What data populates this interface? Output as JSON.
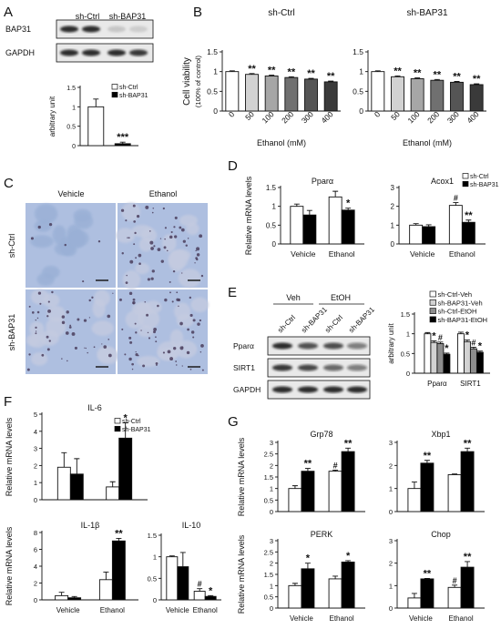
{
  "panel_labels": [
    "A",
    "B",
    "C",
    "D",
    "E",
    "F",
    "G"
  ],
  "colors": {
    "open": "#ffffff",
    "solid": "#000000",
    "grey1": "#d2d2d2",
    "grey2": "#bdbdbd",
    "grey3": "#a6a6a6",
    "grey4": "#8d8d8d",
    "grey5": "#707070",
    "grey6": "#555555",
    "grey7": "#3a3a3a",
    "micro_blue": "#aebfe0",
    "micro_stain": "#4a3d5c"
  },
  "blots_A": {
    "lanes": [
      "sh-Ctrl",
      "sh-BAP31"
    ],
    "proteins": [
      "BAP31",
      "GAPDH"
    ]
  },
  "blots_E": {
    "groups": [
      "Veh",
      "EtOH"
    ],
    "lanes": [
      "sh-Ctrl",
      "sh-BAP31",
      "sh-Ctrl",
      "sh-BAP31"
    ],
    "proteins": [
      "Pparα",
      "SIRT1",
      "GAPDH"
    ]
  },
  "micrographs_C": {
    "columns": [
      "Vehicle",
      "Ethanol"
    ],
    "rows": [
      "sh-Ctrl",
      "sh-BAP31"
    ]
  },
  "chart_data": [
    {
      "id": "A",
      "type": "bar",
      "categories": [
        "sh-Ctrl",
        "sh-BAP31"
      ],
      "values": [
        1.0,
        0.05
      ],
      "errors": [
        0.2,
        0.04
      ],
      "fills": [
        "open",
        "solid"
      ],
      "ylabel": "arbitrary unit",
      "ylim": [
        0,
        1.5
      ],
      "yticks": [
        0,
        0.5,
        1,
        1.5
      ],
      "xticks": [],
      "legend": [
        "sh-Ctrl",
        "sh-BAP31"
      ],
      "marks": [
        "",
        "***"
      ]
    },
    {
      "id": "B1",
      "type": "bar",
      "title": "sh-Ctrl",
      "categories": [
        "0",
        "50",
        "100",
        "200",
        "300",
        "400"
      ],
      "values": [
        1.0,
        0.93,
        0.89,
        0.85,
        0.81,
        0.74
      ],
      "errors": [
        0.02,
        0.02,
        0.02,
        0.02,
        0.02,
        0.02
      ],
      "fills": [
        "open",
        "grey1",
        "grey3",
        "grey5",
        "grey6",
        "grey7"
      ],
      "ylabel": "Cell viability",
      "ylabel2": "(100% of control)",
      "xlabel": "Ethanol (mM)",
      "ylim": [
        0,
        1.5
      ],
      "yticks": [
        0,
        0.5,
        1,
        1.5
      ],
      "marks": [
        "",
        "**",
        "**",
        "**",
        "**",
        "**"
      ]
    },
    {
      "id": "B2",
      "type": "bar",
      "title": "sh-BAP31",
      "categories": [
        "0",
        "50",
        "100",
        "200",
        "300",
        "400"
      ],
      "values": [
        1.0,
        0.87,
        0.82,
        0.78,
        0.73,
        0.67
      ],
      "errors": [
        0.02,
        0.02,
        0.02,
        0.02,
        0.02,
        0.02
      ],
      "fills": [
        "open",
        "grey1",
        "grey3",
        "grey5",
        "grey6",
        "grey7"
      ],
      "ylabel": "",
      "xlabel": "Ethanol (mM)",
      "ylim": [
        0,
        1.5
      ],
      "yticks": [
        0,
        0.5,
        1,
        1.5
      ],
      "marks": [
        "",
        "**",
        "**",
        "**",
        "**",
        "**"
      ]
    },
    {
      "id": "D1",
      "type": "bar",
      "title": "Pparα",
      "categories": [
        "Vehicle",
        "Ethanol"
      ],
      "series": [
        {
          "name": "sh-Ctrl",
          "values": [
            1.0,
            1.25
          ],
          "errors": [
            0.06,
            0.15
          ]
        },
        {
          "name": "sh-BAP31",
          "values": [
            0.77,
            0.9
          ],
          "errors": [
            0.12,
            0.05
          ]
        }
      ],
      "ylabel": "Relative mRNA levels",
      "ylim": [
        0,
        1.5
      ],
      "yticks": [
        0,
        0.5,
        1,
        1.5
      ],
      "marks": [
        [
          "",
          ""
        ],
        [
          "",
          "*"
        ]
      ]
    },
    {
      "id": "D2",
      "type": "bar",
      "title": "Acox1",
      "categories": [
        "Vehicle",
        "Ethanol"
      ],
      "series": [
        {
          "name": "sh-Ctrl",
          "values": [
            1.0,
            2.05
          ],
          "errors": [
            0.08,
            0.15
          ]
        },
        {
          "name": "sh-BAP31",
          "values": [
            0.92,
            1.15
          ],
          "errors": [
            0.1,
            0.12
          ]
        }
      ],
      "ylabel": "",
      "ylim": [
        0,
        3
      ],
      "yticks": [
        0,
        1,
        2,
        3
      ],
      "legend": [
        "sh-Ctrl",
        "sh-BAP31"
      ],
      "marks": [
        [
          "",
          ""
        ],
        [
          "#",
          "**"
        ]
      ]
    },
    {
      "id": "E",
      "type": "bar",
      "categories": [
        "Pparα",
        "SIRT1"
      ],
      "series": [
        {
          "name": "sh-Ctrl-Veh",
          "values": [
            1.0,
            1.0
          ],
          "errors": [
            0.03,
            0.04
          ]
        },
        {
          "name": "sh-BAP31-Veh",
          "values": [
            0.78,
            0.8
          ],
          "errors": [
            0.04,
            0.04
          ]
        },
        {
          "name": "sh-Ctrl-EtOH",
          "values": [
            0.75,
            0.62
          ],
          "errors": [
            0.04,
            0.04
          ]
        },
        {
          "name": "sh-BAP31-EtOH",
          "values": [
            0.48,
            0.53
          ],
          "errors": [
            0.03,
            0.03
          ]
        }
      ],
      "fills": [
        "open",
        "grey1",
        "grey4",
        "solid"
      ],
      "ylabel": "arbitrary unit",
      "ylim": [
        0,
        1.5
      ],
      "yticks": [
        0,
        0.5,
        1,
        1.5
      ],
      "legend": [
        "sh-Ctrl-Veh",
        "sh-BAP31-Veh",
        "sh-Ctrl-EtOH",
        "sh-BAP31-EtOH"
      ],
      "marks": [
        [
          "",
          "*",
          "#",
          "*"
        ],
        [
          "",
          "*",
          "#",
          "*"
        ]
      ]
    },
    {
      "id": "F1",
      "type": "bar",
      "title": "IL-6",
      "categories": [
        "Vehicle",
        "Ethanol"
      ],
      "series": [
        {
          "name": "sh-Ctrl",
          "values": [
            1.9,
            0.75
          ],
          "errors": [
            0.85,
            0.3
          ]
        },
        {
          "name": "sh-BAP31",
          "values": [
            1.5,
            3.6
          ],
          "errors": [
            0.9,
            0.9
          ]
        }
      ],
      "ylabel": "Relative mRNA levels",
      "ylim": [
        0,
        5
      ],
      "yticks": [
        0,
        1,
        2,
        3,
        4,
        5
      ],
      "legend": [
        "sh-Ctrl",
        "sh-BAP31"
      ],
      "marks": [
        [
          "",
          ""
        ],
        [
          "",
          "*"
        ]
      ]
    },
    {
      "id": "F2",
      "type": "bar",
      "title": "IL-1β",
      "categories": [
        "Vehicle",
        "Ethanol"
      ],
      "series": [
        {
          "name": "sh-Ctrl",
          "values": [
            0.5,
            2.4
          ],
          "errors": [
            0.4,
            0.9
          ]
        },
        {
          "name": "sh-BAP31",
          "values": [
            0.25,
            7.0
          ],
          "errors": [
            0.15,
            0.3
          ]
        }
      ],
      "ylabel": "Relative mRNA levels",
      "ylim": [
        0,
        8
      ],
      "yticks": [
        0,
        2,
        4,
        6,
        8
      ],
      "marks": [
        [
          "",
          ""
        ],
        [
          "",
          "**"
        ]
      ]
    },
    {
      "id": "F3",
      "type": "bar",
      "title": "IL-10",
      "categories": [
        "Vehicle",
        "Ethanol"
      ],
      "series": [
        {
          "name": "sh-Ctrl",
          "values": [
            1.0,
            0.2
          ],
          "errors": [
            0.02,
            0.06
          ]
        },
        {
          "name": "sh-BAP31",
          "values": [
            0.77,
            0.08
          ],
          "errors": [
            0.33,
            0.02
          ]
        }
      ],
      "ylabel": "",
      "ylim": [
        0,
        1.5
      ],
      "yticks": [
        0,
        0.5,
        1,
        1.5
      ],
      "marks": [
        [
          "",
          ""
        ],
        [
          "#",
          "*"
        ]
      ]
    },
    {
      "id": "G1",
      "type": "bar",
      "title": "Grp78",
      "categories": [
        "",
        ""
      ],
      "series": [
        {
          "name": "sh-Ctrl",
          "values": [
            1.0,
            1.75
          ],
          "errors": [
            0.12,
            0.05
          ]
        },
        {
          "name": "sh-BAP31",
          "values": [
            1.75,
            2.6
          ],
          "errors": [
            0.12,
            0.15
          ]
        }
      ],
      "ylabel": "Relative mRNA levels",
      "ylim": [
        0,
        3
      ],
      "yticks": [
        0,
        0.5,
        1,
        1.5,
        2,
        2.5,
        3
      ],
      "marks": [
        [
          "",
          "**"
        ],
        [
          "#",
          "**"
        ]
      ]
    },
    {
      "id": "G2",
      "type": "bar",
      "title": "Xbp1",
      "categories": [
        "",
        ""
      ],
      "series": [
        {
          "name": "sh-Ctrl",
          "values": [
            1.0,
            1.6
          ],
          "errors": [
            0.28,
            0.03
          ]
        },
        {
          "name": "sh-BAP31",
          "values": [
            2.1,
            2.6
          ],
          "errors": [
            0.12,
            0.15
          ]
        }
      ],
      "ylabel": "",
      "ylim": [
        0,
        3
      ],
      "yticks": [
        0,
        1,
        2,
        3
      ],
      "marks": [
        [
          "",
          "**"
        ],
        [
          "",
          "**"
        ]
      ]
    },
    {
      "id": "G3",
      "type": "bar",
      "title": "PERK",
      "categories": [
        "Vehicle",
        "Ethanol"
      ],
      "series": [
        {
          "name": "sh-Ctrl",
          "values": [
            1.0,
            1.3
          ],
          "errors": [
            0.1,
            0.12
          ]
        },
        {
          "name": "sh-BAP31",
          "values": [
            1.75,
            2.05
          ],
          "errors": [
            0.25,
            0.06
          ]
        }
      ],
      "ylabel": "Relative mRNA levels",
      "ylim": [
        0,
        3
      ],
      "yticks": [
        0,
        0.5,
        1,
        1.5,
        2,
        2.5,
        3
      ],
      "marks": [
        [
          "",
          "*"
        ],
        [
          "",
          "*"
        ]
      ]
    },
    {
      "id": "G4",
      "type": "bar",
      "title": "Chop",
      "categories": [
        "Vehicle",
        "Ethanol"
      ],
      "series": [
        {
          "name": "sh-Ctrl",
          "values": [
            0.45,
            0.92
          ],
          "errors": [
            0.2,
            0.1
          ]
        },
        {
          "name": "sh-BAP31",
          "values": [
            1.3,
            1.82
          ],
          "errors": [
            0.02,
            0.25
          ]
        }
      ],
      "ylabel": "",
      "ylim": [
        0,
        3
      ],
      "yticks": [
        0,
        1,
        2,
        3
      ],
      "marks": [
        [
          "",
          "**"
        ],
        [
          "#",
          "**"
        ]
      ]
    }
  ]
}
